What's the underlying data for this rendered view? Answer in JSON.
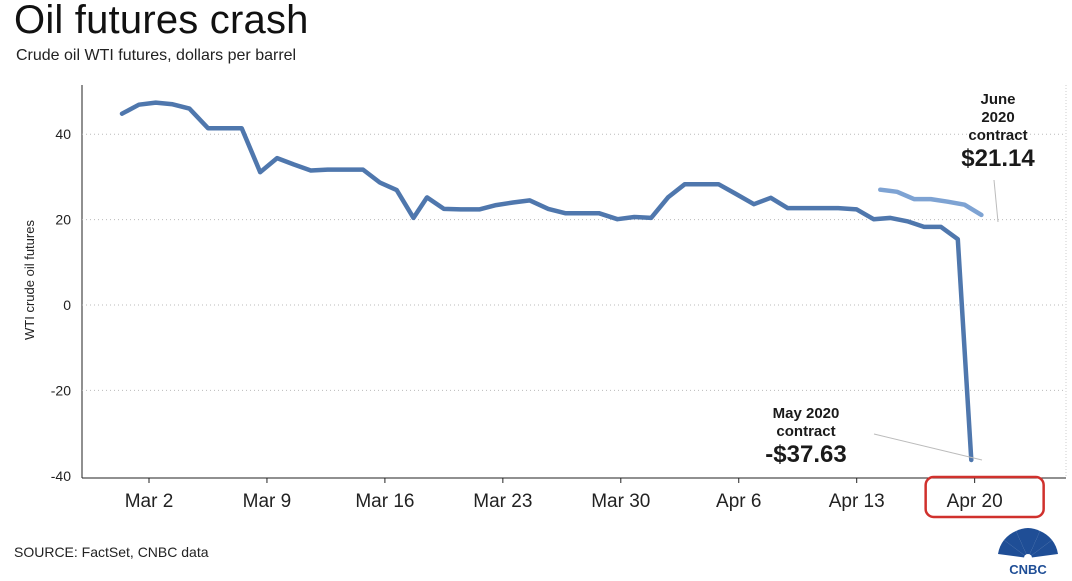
{
  "title": "Oil futures crash",
  "subtitle": "Crude oil WTI futures, dollars per barrel",
  "source": "SOURCE: FactSet, CNBC data",
  "logo_text": "CNBC",
  "colors": {
    "may_line": "#4f77ad",
    "june_line": "#7ea3d3",
    "highlight_box": "#d0312d"
  },
  "chart_data": {
    "type": "line",
    "title": "Oil futures crash",
    "subtitle": "Crude oil WTI futures, dollars per barrel",
    "xlabel": "",
    "ylabel": "WTI crude oil futures",
    "ylim": [
      -42,
      52
    ],
    "yticks": [
      40,
      20,
      0,
      -20,
      -40
    ],
    "grid": "horizontal dotted",
    "x_ticks": [
      "Mar 2",
      "Mar 9",
      "Mar 16",
      "Mar 23",
      "Mar 30",
      "Apr 6",
      "Apr 13",
      "Apr 20"
    ],
    "x_ticks_day": [
      0,
      7,
      14,
      21,
      28,
      35,
      42,
      49
    ],
    "highlighted_tick": "Apr 20",
    "series": [
      {
        "name": "May 2020 contract",
        "points": [
          [
            -1.6,
            44.8
          ],
          [
            -0.6,
            46.9
          ],
          [
            0.4,
            47.4
          ],
          [
            1.4,
            47.0
          ],
          [
            2.4,
            46.0
          ],
          [
            3.5,
            41.4
          ],
          [
            4.5,
            41.4
          ],
          [
            5.5,
            41.4
          ],
          [
            6.6,
            31.1
          ],
          [
            7.6,
            34.4
          ],
          [
            8.6,
            32.9
          ],
          [
            9.6,
            31.5
          ],
          [
            10.6,
            31.7
          ],
          [
            11.6,
            31.7
          ],
          [
            12.7,
            31.7
          ],
          [
            13.7,
            28.7
          ],
          [
            14.7,
            26.9
          ],
          [
            15.7,
            20.4
          ],
          [
            16.5,
            25.2
          ],
          [
            17.5,
            22.5
          ],
          [
            18.5,
            22.4
          ],
          [
            19.6,
            22.4
          ],
          [
            20.6,
            23.4
          ],
          [
            21.6,
            24.0
          ],
          [
            22.6,
            24.5
          ],
          [
            23.7,
            22.5
          ],
          [
            24.7,
            21.5
          ],
          [
            25.7,
            21.5
          ],
          [
            26.7,
            21.5
          ],
          [
            27.8,
            20.1
          ],
          [
            28.8,
            20.6
          ],
          [
            29.8,
            20.4
          ],
          [
            30.8,
            25.2
          ],
          [
            31.8,
            28.3
          ],
          [
            32.8,
            28.3
          ],
          [
            33.8,
            28.3
          ],
          [
            34.8,
            26.1
          ],
          [
            35.9,
            23.6
          ],
          [
            36.9,
            25.1
          ],
          [
            37.9,
            22.7
          ],
          [
            38.9,
            22.7
          ],
          [
            39.9,
            22.7
          ],
          [
            40.9,
            22.7
          ],
          [
            42.0,
            22.4
          ],
          [
            43.0,
            20.1
          ],
          [
            44.0,
            20.4
          ],
          [
            45.0,
            19.6
          ],
          [
            46.0,
            18.3
          ],
          [
            47.0,
            18.3
          ],
          [
            48.0,
            15.4
          ],
          [
            48.8,
            -36.3
          ]
        ]
      },
      {
        "name": "June 2020 contract",
        "points": [
          [
            43.4,
            27.0
          ],
          [
            44.4,
            26.5
          ],
          [
            45.4,
            24.8
          ],
          [
            46.4,
            24.8
          ],
          [
            47.4,
            24.2
          ],
          [
            48.4,
            23.5
          ],
          [
            49.4,
            21.1
          ]
        ]
      }
    ],
    "annotations": [
      {
        "series": "June 2020 contract",
        "lines": [
          "June",
          "2020",
          "contract"
        ],
        "value": "$21.14"
      },
      {
        "series": "May 2020 contract",
        "lines": [
          "May 2020",
          "contract"
        ],
        "value": "-$37.63"
      }
    ]
  }
}
